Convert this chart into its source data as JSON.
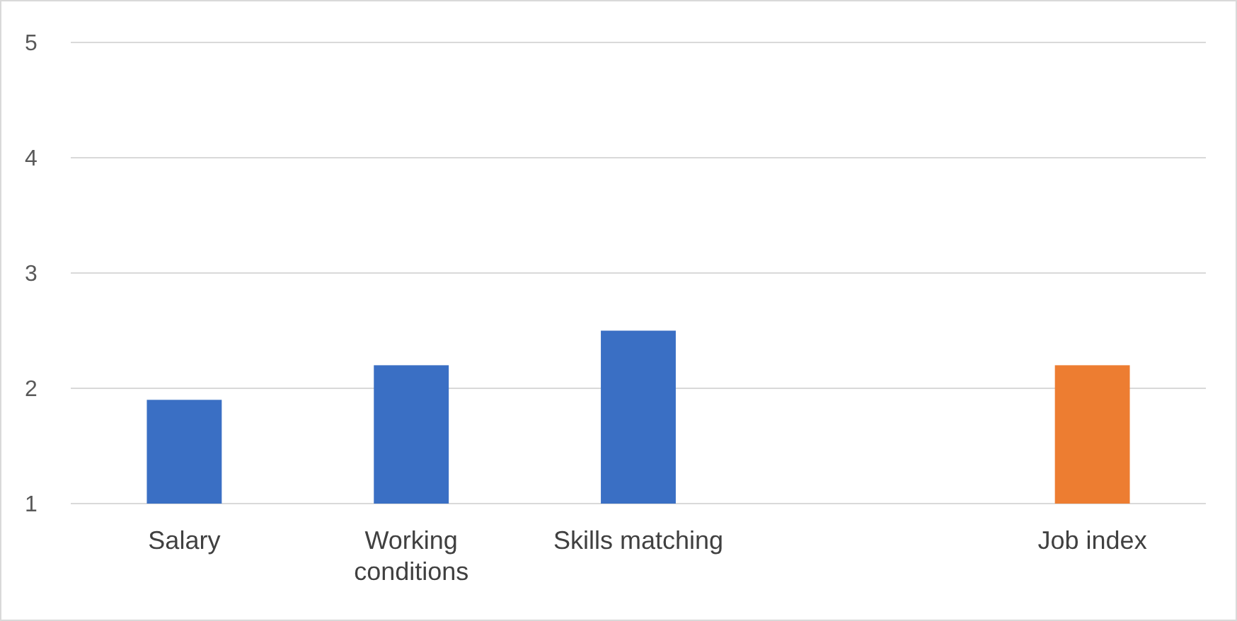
{
  "chart_data": {
    "type": "bar",
    "categories": [
      "Salary",
      "Working conditions",
      "Skills matching",
      null,
      "Job index"
    ],
    "values": [
      1.9,
      2.2,
      2.5,
      null,
      2.2
    ],
    "colors": [
      "#3a6fc4",
      "#3a6fc4",
      "#3a6fc4",
      null,
      "#ed7d31"
    ],
    "ylim": [
      1,
      5
    ],
    "yticks": [
      1,
      2,
      3,
      4,
      5
    ],
    "grid": "y"
  }
}
